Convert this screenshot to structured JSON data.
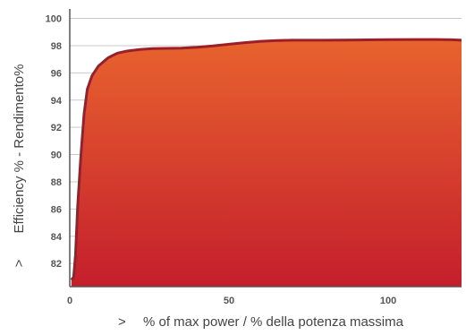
{
  "chart_data": {
    "type": "area",
    "title": "",
    "xlabel": "% of max power / % della potenza massima",
    "ylabel": "Efficiency % - Rendimento%",
    "axis_marker": ">",
    "xlim": [
      0,
      123
    ],
    "ylim": [
      80.3,
      100.3
    ],
    "x_ticks": [
      0,
      50,
      100
    ],
    "y_ticks": [
      82,
      84,
      86,
      88,
      90,
      92,
      94,
      96,
      98,
      100
    ],
    "grid": "horizontal",
    "legend": "none",
    "colors": {
      "fill_top": "#e8632e",
      "fill_bottom": "#c41e2c",
      "line": "#9c1f28",
      "grid": "#c9c9c9",
      "axis": "#555555"
    },
    "series": [
      {
        "x": [
          0.5,
          1.2,
          1.8,
          2.5,
          3.5,
          4.5,
          5.5,
          7,
          9,
          12,
          15,
          18,
          22,
          26,
          30,
          35,
          40,
          45,
          50,
          55,
          60,
          65,
          70,
          75,
          80,
          90,
          100,
          110,
          115,
          120,
          123
        ],
        "values": [
          80.8,
          81.0,
          82.6,
          86.3,
          90.0,
          93.0,
          94.8,
          95.8,
          96.5,
          97.1,
          97.45,
          97.6,
          97.72,
          97.78,
          97.8,
          97.82,
          97.88,
          97.98,
          98.1,
          98.22,
          98.32,
          98.38,
          98.4,
          98.4,
          98.4,
          98.42,
          98.44,
          98.45,
          98.45,
          98.43,
          98.4
        ]
      }
    ]
  }
}
